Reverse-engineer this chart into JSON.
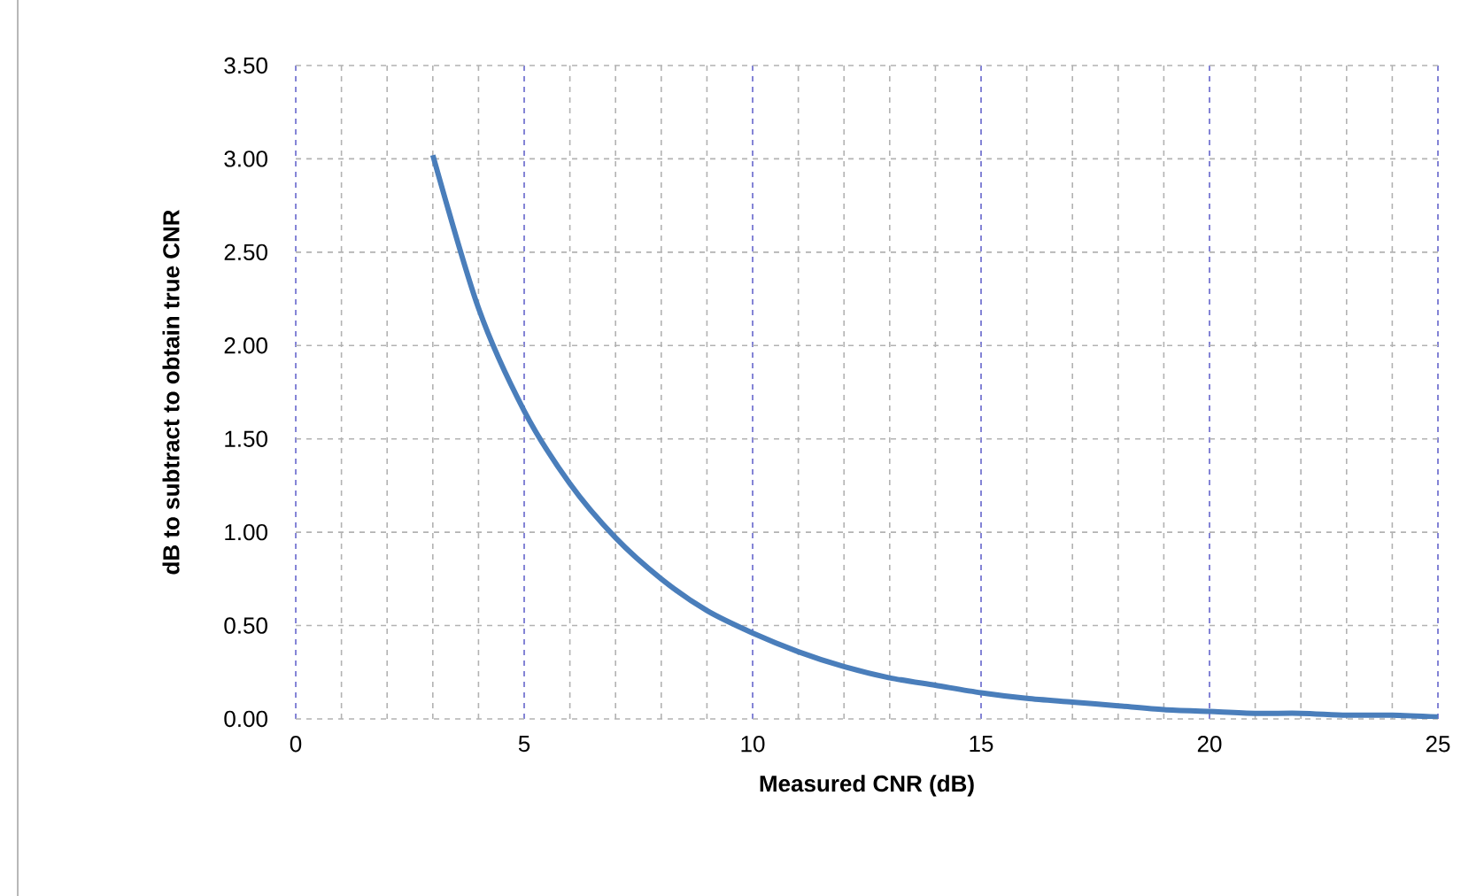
{
  "chart_data": {
    "type": "line",
    "xlabel": "Measured CNR (dB)",
    "ylabel": "dB to subtract to obtain true CNR",
    "x": [
      3,
      4,
      5,
      6,
      7,
      8,
      9,
      10,
      11,
      12,
      13,
      14,
      15,
      16,
      17,
      18,
      19,
      20,
      21,
      22,
      23,
      24,
      25
    ],
    "series": [
      {
        "color": "#4a7ebb",
        "values": [
          3.02,
          2.2,
          1.65,
          1.26,
          0.97,
          0.75,
          0.58,
          0.46,
          0.36,
          0.28,
          0.22,
          0.18,
          0.14,
          0.11,
          0.09,
          0.07,
          0.05,
          0.04,
          0.03,
          0.03,
          0.02,
          0.02,
          0.01
        ]
      }
    ],
    "xlim": [
      0,
      25
    ],
    "xticks": [
      0,
      {
        "value": 1,
        "label": null
      },
      {
        "value": 2,
        "label": null
      },
      {
        "value": 3,
        "label": null
      },
      {
        "value": 4,
        "label": null
      },
      5,
      {
        "value": 6,
        "label": null
      },
      {
        "value": 7,
        "label": null
      },
      {
        "value": 8,
        "label": null
      },
      {
        "value": 9,
        "label": null
      },
      10,
      {
        "value": 11,
        "label": null
      },
      {
        "value": 12,
        "label": null
      },
      {
        "value": 13,
        "label": null
      },
      {
        "value": 14,
        "label": null
      },
      15,
      {
        "value": 16,
        "label": null
      },
      {
        "value": 17,
        "label": null
      },
      {
        "value": 18,
        "label": null
      },
      {
        "value": 19,
        "label": null
      },
      20,
      {
        "value": 21,
        "label": null
      },
      {
        "value": 22,
        "label": null
      },
      {
        "value": 23,
        "label": null
      },
      {
        "value": 24,
        "label": null
      },
      25
    ],
    "ylim": [
      0,
      3.5
    ],
    "yticks": [
      {
        "value": 0,
        "label": "0.00"
      },
      {
        "value": 0.5,
        "label": "0.50"
      },
      {
        "value": 1,
        "label": "1.00"
      },
      {
        "value": 1.5,
        "label": "1.50"
      },
      {
        "value": 2,
        "label": "2.00"
      },
      {
        "value": 2.5,
        "label": "2.50"
      },
      {
        "value": 3,
        "label": "3.00"
      },
      {
        "value": 3.5,
        "label": "3.50"
      }
    ],
    "grid": true,
    "marker": "none",
    "line_style": "solid"
  }
}
